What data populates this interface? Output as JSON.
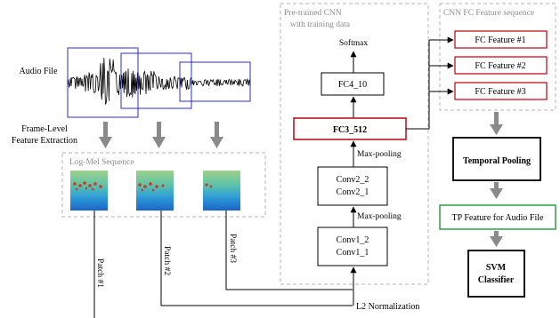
{
  "audio": {
    "label": "Audio File"
  },
  "extraction": {
    "line1": "Frame-Level",
    "line2": "Feature Extraction"
  },
  "log_mel": {
    "title": "Log-Mel Sequence"
  },
  "patches": [
    "Patch #1",
    "Patch #2",
    "Patch #3"
  ],
  "cnn": {
    "title_line1": "Pre-trained CNN",
    "title_line2": "with training data",
    "softmax": "Softmax",
    "fc4": "FC4_10",
    "fc3": "FC3_512",
    "conv2_top": "Conv2_2",
    "conv2_bottom": "Conv2_1",
    "conv1_top": "Conv1_2",
    "conv1_bottom": "Conv1_1",
    "maxpool_upper": "Max-pooling",
    "maxpool_lower": "Max-pooling",
    "l2": "L2 Normalization"
  },
  "fc_sequence": {
    "title": "CNN FC Feature sequence",
    "features": [
      "FC Feature #1",
      "FC Feature #2",
      "FC Feature #3"
    ]
  },
  "temporal_pooling": "Temporal Pooling",
  "tp_feature": "TP Feature for Audio File",
  "svm": {
    "line1": "SVM",
    "line2": "Classifier"
  },
  "colors": {
    "window_blue": "#2b2bd6",
    "fc_red": "#c0141c",
    "tp_green": "#2ea043",
    "gray_arrow": "#8a8a8a",
    "dashed_gray": "#b4b4b4"
  }
}
